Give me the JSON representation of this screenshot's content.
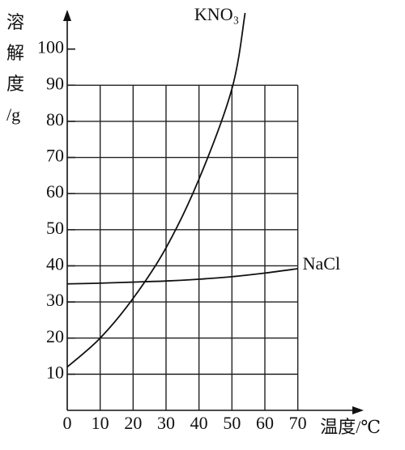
{
  "chart_data": {
    "type": "line",
    "ylabel_lines": [
      "溶",
      "解",
      "度",
      "/g"
    ],
    "xlabel": "温度/℃",
    "xlim": [
      0,
      90
    ],
    "ylim": [
      0,
      110
    ],
    "xticks": [
      0,
      10,
      20,
      30,
      40,
      50,
      60,
      70
    ],
    "yticks": [
      10,
      20,
      30,
      40,
      50,
      60,
      70,
      80,
      90,
      100
    ],
    "grid": true,
    "series": [
      {
        "name": "KNO₃",
        "color": "#111111",
        "x": [
          0,
          10,
          20,
          30,
          40,
          50,
          54
        ],
        "values": [
          12,
          20,
          31,
          45,
          64,
          89,
          110
        ]
      },
      {
        "name": "NaCl",
        "color": "#111111",
        "x": [
          0,
          10,
          20,
          30,
          40,
          50,
          60,
          70
        ],
        "values": [
          35,
          35.2,
          35.5,
          35.8,
          36.3,
          37,
          38,
          39.2
        ]
      }
    ]
  }
}
